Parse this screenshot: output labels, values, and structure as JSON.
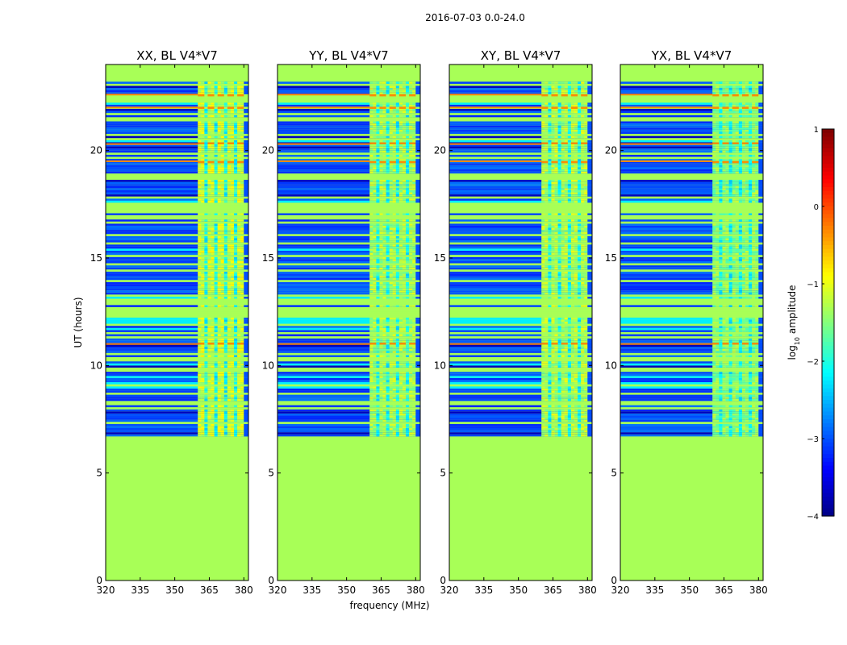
{
  "chart_data": {
    "type": "heatmap",
    "suptitle": "2016-07-03 0.0-24.0",
    "xlabel": "frequency (MHz)",
    "ylabel": "UT (hours)",
    "xlim": [
      320,
      382
    ],
    "ylim": [
      0,
      24
    ],
    "xticks": [
      "320",
      "335",
      "350",
      "365",
      "380"
    ],
    "yticks": [
      "0",
      "5",
      "10",
      "15",
      "20"
    ],
    "colormap": "jet",
    "colorbar": {
      "label": "log",
      "label_sub": "10",
      "label_rest": " amplitude",
      "range": [
        -4,
        1
      ],
      "ticks": [
        "1",
        "0",
        "−1",
        "−2",
        "−3",
        "−4"
      ],
      "tick_values": [
        1,
        0,
        -1,
        -2,
        -3,
        -4
      ]
    },
    "data_start_hour": 6.7,
    "data_end_hour": 23.2,
    "fill_value": -1.3,
    "background_value": -3.0,
    "rfi_band_mhz": [
      360,
      380
    ],
    "panels": [
      {
        "title": "XX, BL V4*V7",
        "band_level": -1.1
      },
      {
        "title": "YY, BL V4*V7",
        "band_level": -1.3
      },
      {
        "title": "XY, BL V4*V7",
        "band_level": -1.25
      },
      {
        "title": "YX, BL V4*V7",
        "band_level": -1.45
      }
    ],
    "strong_rfi_hours": [
      11.0,
      19.5,
      20.3,
      22.0,
      22.6
    ],
    "colors": {
      "fill": "#98ff5f",
      "axis": "#000000"
    }
  }
}
